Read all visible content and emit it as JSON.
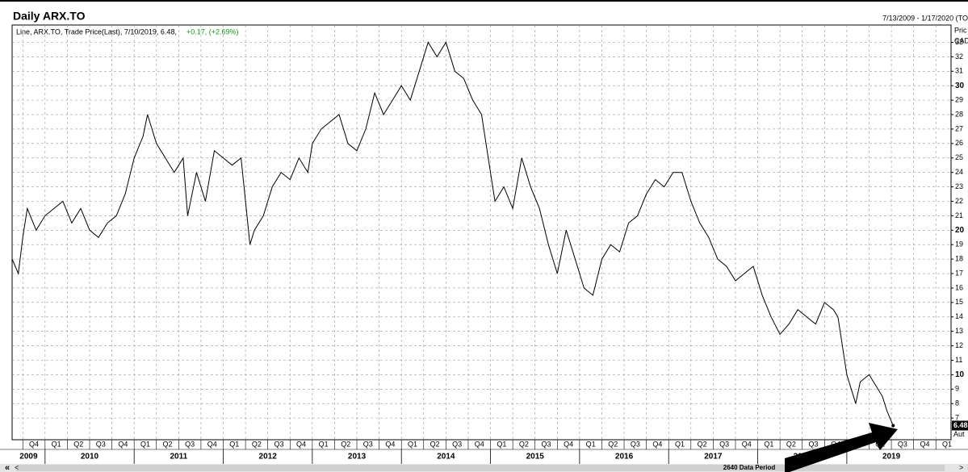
{
  "chart_data": {
    "type": "line",
    "title": "Daily ARX.TO",
    "date_range": "7/13/2009 - 1/17/2020 (TO",
    "legend_text": "Line, ARX.TO, Trade Price(Last), 7/10/2019, 6.48,",
    "legend_change": "+0.17, (+2.69%)",
    "axis_header": [
      "Pric",
      "CAD"
    ],
    "axis_note": "Aut",
    "footer": "2640 Data Period",
    "color": "#000000",
    "grid": true,
    "x": [
      2009.63,
      2009.7,
      2009.75,
      2009.8,
      2009.9,
      2010.0,
      2010.1,
      2010.2,
      2010.3,
      2010.4,
      2010.5,
      2010.6,
      2010.7,
      2010.8,
      2010.9,
      2011.0,
      2011.1,
      2011.15,
      2011.25,
      2011.35,
      2011.45,
      2011.55,
      2011.6,
      2011.7,
      2011.8,
      2011.9,
      2012.0,
      2012.1,
      2012.2,
      2012.3,
      2012.35,
      2012.45,
      2012.55,
      2012.65,
      2012.75,
      2012.85,
      2012.95,
      2013.0,
      2013.1,
      2013.2,
      2013.3,
      2013.4,
      2013.5,
      2013.6,
      2013.7,
      2013.8,
      2013.9,
      2014.0,
      2014.1,
      2014.2,
      2014.3,
      2014.4,
      2014.5,
      2014.6,
      2014.7,
      2014.8,
      2014.9,
      2015.0,
      2015.05,
      2015.15,
      2015.25,
      2015.35,
      2015.45,
      2015.55,
      2015.65,
      2015.75,
      2015.85,
      2015.95,
      2016.05,
      2016.15,
      2016.25,
      2016.35,
      2016.45,
      2016.55,
      2016.65,
      2016.75,
      2016.85,
      2016.95,
      2017.05,
      2017.15,
      2017.25,
      2017.35,
      2017.45,
      2017.55,
      2017.65,
      2017.75,
      2017.85,
      2017.95,
      2018.05,
      2018.15,
      2018.25,
      2018.35,
      2018.45,
      2018.55,
      2018.65,
      2018.75,
      2018.85,
      2018.9,
      2018.95,
      2019.0,
      2019.1,
      2019.15,
      2019.25,
      2019.35,
      2019.4,
      2019.45,
      2019.52
    ],
    "values": [
      18,
      17,
      19.5,
      21.5,
      20,
      21,
      21.5,
      22,
      20.5,
      21.5,
      20,
      19.5,
      20.5,
      21,
      22.5,
      25,
      26.5,
      28,
      26,
      25,
      24,
      25,
      21,
      24,
      22,
      25.5,
      25,
      24.5,
      25,
      19,
      20,
      21,
      23,
      24,
      23.5,
      25,
      24,
      26,
      27,
      27.5,
      28,
      26,
      25.5,
      27,
      29.5,
      28,
      29,
      30,
      29,
      31,
      33,
      32,
      33,
      31,
      30.5,
      29,
      28,
      24,
      22,
      23,
      21.5,
      25,
      23,
      21.5,
      19,
      17,
      20,
      18,
      16,
      15.5,
      18,
      19,
      18.5,
      20.5,
      21,
      22.5,
      23.5,
      23,
      24,
      24,
      22,
      20.5,
      19.5,
      18,
      17.5,
      16.5,
      17,
      17.5,
      15.5,
      14,
      12.8,
      13.5,
      14.5,
      14,
      13.5,
      15,
      14.5,
      14,
      12,
      10,
      8,
      9.5,
      10,
      9,
      8.5,
      7.5,
      6.48
    ],
    "xlim": [
      2009.63,
      2020.17
    ],
    "ylim": [
      5.5,
      34.2
    ],
    "yticks": [
      7,
      8,
      9,
      10,
      11,
      12,
      13,
      14,
      15,
      16,
      17,
      18,
      19,
      20,
      21,
      22,
      23,
      24,
      25,
      26,
      27,
      28,
      29,
      30,
      31,
      32,
      33
    ],
    "xticks": [
      {
        "value": 2009.75,
        "label": "Q4"
      },
      {
        "value": 2010.0,
        "label": "Q1"
      },
      {
        "value": 2010.25,
        "label": "Q2"
      },
      {
        "value": 2010.5,
        "label": "Q3"
      },
      {
        "value": 2010.75,
        "label": "Q4"
      },
      {
        "value": 2011.0,
        "label": "Q1"
      },
      {
        "value": 2011.25,
        "label": "Q2"
      },
      {
        "value": 2011.5,
        "label": "Q3"
      },
      {
        "value": 2011.75,
        "label": "Q4"
      },
      {
        "value": 2012.0,
        "label": "Q1"
      },
      {
        "value": 2012.25,
        "label": "Q2"
      },
      {
        "value": 2012.5,
        "label": "Q3"
      },
      {
        "value": 2012.75,
        "label": "Q4"
      },
      {
        "value": 2013.0,
        "label": "Q1"
      },
      {
        "value": 2013.25,
        "label": "Q2"
      },
      {
        "value": 2013.5,
        "label": "Q3"
      },
      {
        "value": 2013.75,
        "label": "Q4"
      },
      {
        "value": 2014.0,
        "label": "Q1"
      },
      {
        "value": 2014.25,
        "label": "Q2"
      },
      {
        "value": 2014.5,
        "label": "Q3"
      },
      {
        "value": 2014.75,
        "label": "Q4"
      },
      {
        "value": 2015.0,
        "label": "Q1"
      },
      {
        "value": 2015.25,
        "label": "Q2"
      },
      {
        "value": 2015.5,
        "label": "Q3"
      },
      {
        "value": 2015.75,
        "label": "Q4"
      },
      {
        "value": 2016.0,
        "label": "Q1"
      },
      {
        "value": 2016.25,
        "label": "Q2"
      },
      {
        "value": 2016.5,
        "label": "Q3"
      },
      {
        "value": 2016.75,
        "label": "Q4"
      },
      {
        "value": 2017.0,
        "label": "Q1"
      },
      {
        "value": 2017.25,
        "label": "Q2"
      },
      {
        "value": 2017.5,
        "label": "Q3"
      },
      {
        "value": 2017.75,
        "label": "Q4"
      },
      {
        "value": 2018.0,
        "label": "Q1"
      },
      {
        "value": 2018.25,
        "label": "Q2"
      },
      {
        "value": 2018.5,
        "label": "Q3"
      },
      {
        "value": 2018.75,
        "label": "Q4"
      },
      {
        "value": 2019.0,
        "label": "Q1"
      },
      {
        "value": 2019.25,
        "label": "Q2"
      },
      {
        "value": 2019.5,
        "label": "Q3"
      },
      {
        "value": 2019.75,
        "label": "Q4"
      },
      {
        "value": 2020.0,
        "label": "Q1"
      }
    ],
    "years": [
      2009,
      2010,
      2011,
      2012,
      2013,
      2014,
      2015,
      2016,
      2017,
      2018,
      2019
    ]
  }
}
